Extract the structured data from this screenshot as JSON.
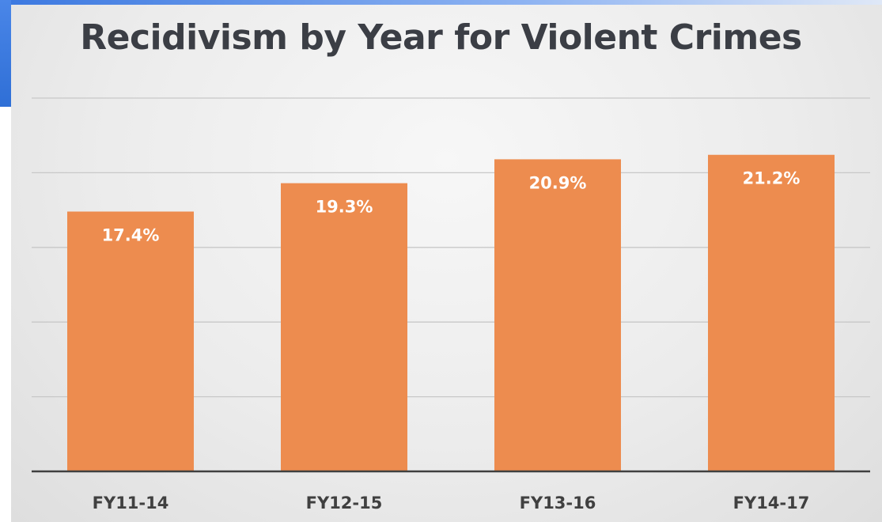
{
  "chart_data": {
    "type": "bar",
    "title": "Recidivism by Year for Violent Crimes",
    "categories": [
      "FY11-14",
      "FY12-15",
      "FY13-16",
      "FY14-17"
    ],
    "values": [
      17.4,
      19.3,
      20.9,
      21.2
    ],
    "value_labels": [
      "17.4%",
      "19.3%",
      "20.9%",
      "21.2%"
    ],
    "unit": "%",
    "xlabel": "",
    "ylabel": "",
    "ylim": [
      0,
      25
    ],
    "grid": true,
    "y_tick_labels_shown": false,
    "legend": "none",
    "bar_color": "#ed8c4f",
    "grid_color": "#c8c8c8",
    "axis_color": "#404040"
  }
}
